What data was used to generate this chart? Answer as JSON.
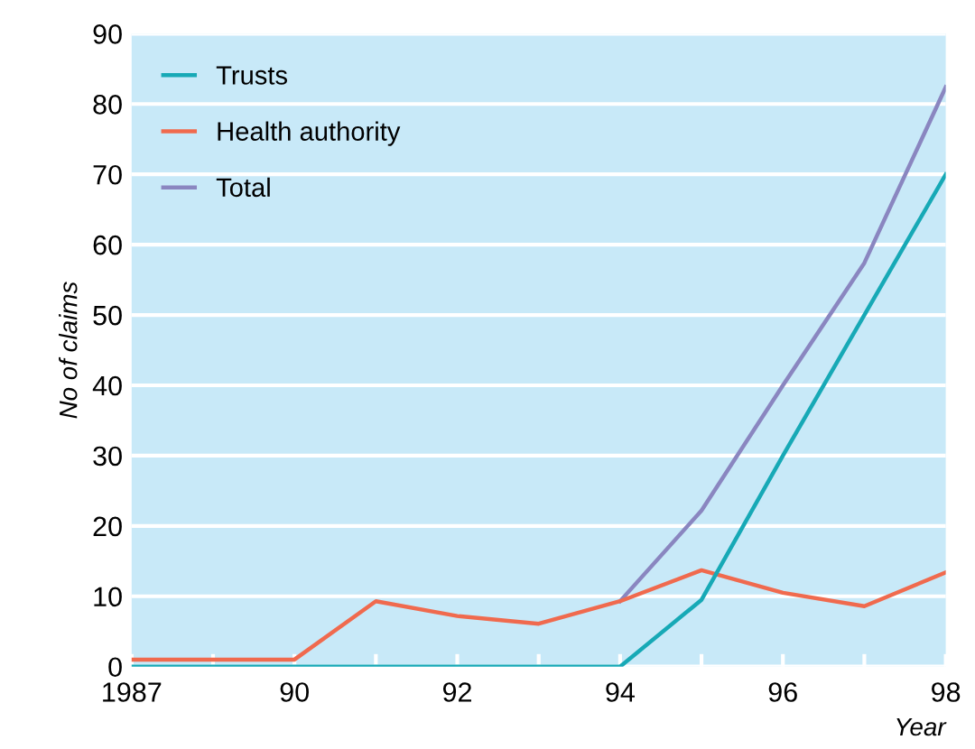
{
  "chart_data": {
    "type": "line",
    "xlabel": "Year",
    "ylabel": "No of claims",
    "categories": [
      "1987",
      null,
      "90",
      null,
      "92",
      null,
      "94",
      null,
      "96",
      null,
      "98"
    ],
    "series": [
      {
        "name": "Trusts",
        "color": "#17a9b6",
        "values": [
          0,
          0,
          0,
          0,
          0,
          0,
          0,
          9.5,
          30,
          50,
          70
        ]
      },
      {
        "name": "Health authority",
        "color": "#f06a4e",
        "values": [
          1,
          1,
          1,
          9.3,
          7.2,
          6.1,
          9.3,
          13.7,
          10.5,
          8.6,
          13.4
        ]
      },
      {
        "name": "Total",
        "color": "#8a86c0",
        "values": [
          null,
          null,
          null,
          null,
          null,
          null,
          9.3,
          22.2,
          40,
          57.4,
          82.4
        ]
      }
    ],
    "ylim": [
      0,
      90
    ],
    "yticks": [
      0,
      10,
      20,
      30,
      40,
      50,
      60,
      70,
      80,
      90
    ],
    "grid": "y",
    "legend": "top left",
    "marker": "none",
    "line_style": "solid"
  }
}
